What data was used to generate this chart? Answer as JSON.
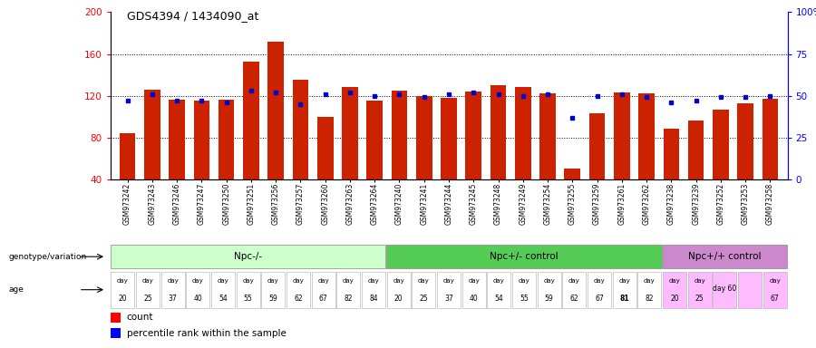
{
  "title": "GDS4394 / 1434090_at",
  "samples": [
    "GSM973242",
    "GSM973243",
    "GSM973246",
    "GSM973247",
    "GSM973250",
    "GSM973251",
    "GSM973256",
    "GSM973257",
    "GSM973260",
    "GSM973263",
    "GSM973264",
    "GSM973240",
    "GSM973241",
    "GSM973244",
    "GSM973245",
    "GSM973248",
    "GSM973249",
    "GSM973254",
    "GSM973255",
    "GSM973259",
    "GSM973261",
    "GSM973262",
    "GSM973238",
    "GSM973239",
    "GSM973252",
    "GSM973253",
    "GSM973258"
  ],
  "counts": [
    84,
    126,
    116,
    115,
    116,
    153,
    172,
    135,
    100,
    128,
    115,
    125,
    120,
    118,
    124,
    130,
    128,
    122,
    50,
    103,
    123,
    122,
    88,
    96,
    107,
    113,
    117
  ],
  "percentile": [
    47,
    51,
    47,
    47,
    46,
    53,
    52,
    45,
    51,
    52,
    50,
    51,
    49,
    51,
    52,
    51,
    50,
    51,
    37,
    50,
    51,
    49,
    46,
    47,
    49,
    49,
    50
  ],
  "groups": [
    {
      "label": "Npc-/-",
      "start": 0,
      "end": 11,
      "color": "#ccffcc"
    },
    {
      "label": "Npc+/- control",
      "start": 11,
      "end": 22,
      "color": "#55cc55"
    },
    {
      "label": "Npc+/+ control",
      "start": 22,
      "end": 27,
      "color": "#cc88cc"
    }
  ],
  "ages": [
    "20",
    "25",
    "37",
    "40",
    "54",
    "55",
    "59",
    "62",
    "67",
    "82",
    "84",
    "20",
    "25",
    "37",
    "40",
    "54",
    "55",
    "59",
    "62",
    "67",
    "81",
    "82",
    "20",
    "25",
    "60",
    "",
    "67"
  ],
  "age_bold": [
    false,
    false,
    false,
    false,
    false,
    false,
    false,
    false,
    false,
    false,
    false,
    false,
    false,
    false,
    false,
    false,
    false,
    false,
    false,
    false,
    true,
    false,
    false,
    false,
    false,
    false,
    false
  ],
  "age_wide_idx": 24,
  "ylim_left": [
    40,
    200
  ],
  "ylim_right": [
    0,
    100
  ],
  "yticks_left": [
    40,
    80,
    120,
    160,
    200
  ],
  "yticks_right": [
    0,
    25,
    50,
    75,
    100
  ],
  "grid_values": [
    80,
    120,
    160
  ],
  "bar_color": "#cc2200",
  "dot_color": "#0000cc",
  "background_color": "#ffffff"
}
